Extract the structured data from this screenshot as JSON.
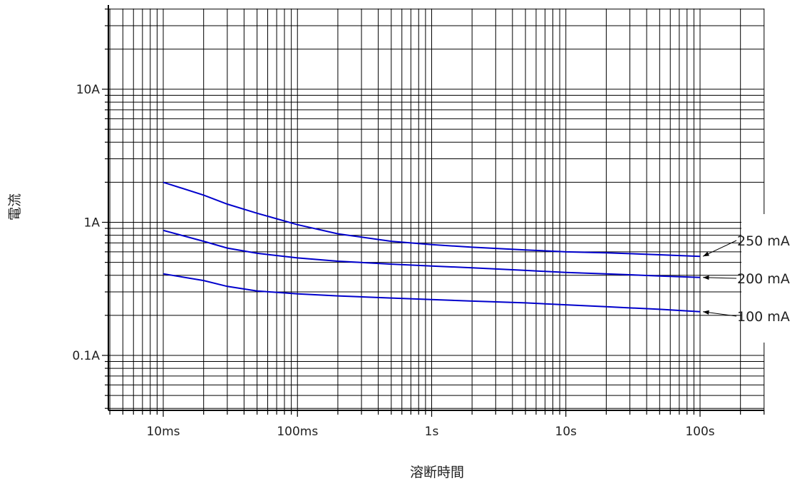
{
  "chart_data": {
    "type": "line",
    "xlabel": "溶断時間",
    "ylabel": "電流",
    "x_scale": "log",
    "y_scale": "log",
    "xlim": [
      0.004,
      350
    ],
    "ylim": [
      0.04,
      50
    ],
    "grid": true,
    "x_ticks": [
      {
        "value": 0.01,
        "label": "10ms"
      },
      {
        "value": 0.1,
        "label": "100ms"
      },
      {
        "value": 1,
        "label": "1s"
      },
      {
        "value": 10,
        "label": "10s"
      },
      {
        "value": 100,
        "label": "100s"
      }
    ],
    "y_ticks": [
      {
        "value": 0.1,
        "label": "0.1A"
      },
      {
        "value": 1,
        "label": "1A"
      },
      {
        "value": 10,
        "label": "10A"
      }
    ],
    "series": [
      {
        "name": "250 mA",
        "color": "#0000cc",
        "x": [
          0.01,
          0.02,
          0.03,
          0.05,
          0.1,
          0.2,
          0.5,
          1,
          2,
          5,
          10,
          20,
          50,
          100
        ],
        "y": [
          2.0,
          1.6,
          1.37,
          1.17,
          0.96,
          0.82,
          0.72,
          0.68,
          0.65,
          0.62,
          0.6,
          0.59,
          0.57,
          0.555
        ]
      },
      {
        "name": "200 mA",
        "color": "#0000cc",
        "x": [
          0.01,
          0.02,
          0.03,
          0.05,
          0.1,
          0.2,
          0.5,
          1,
          2,
          5,
          10,
          20,
          50,
          100
        ],
        "y": [
          0.87,
          0.72,
          0.64,
          0.585,
          0.54,
          0.51,
          0.485,
          0.47,
          0.455,
          0.435,
          0.42,
          0.41,
          0.395,
          0.385
        ]
      },
      {
        "name": "100 mA",
        "color": "#0000cc",
        "x": [
          0.01,
          0.02,
          0.03,
          0.05,
          0.1,
          0.2,
          0.5,
          1,
          2,
          5,
          10,
          20,
          50,
          100
        ],
        "y": [
          0.41,
          0.365,
          0.33,
          0.305,
          0.29,
          0.28,
          0.27,
          0.263,
          0.256,
          0.248,
          0.24,
          0.232,
          0.222,
          0.213
        ]
      }
    ]
  }
}
